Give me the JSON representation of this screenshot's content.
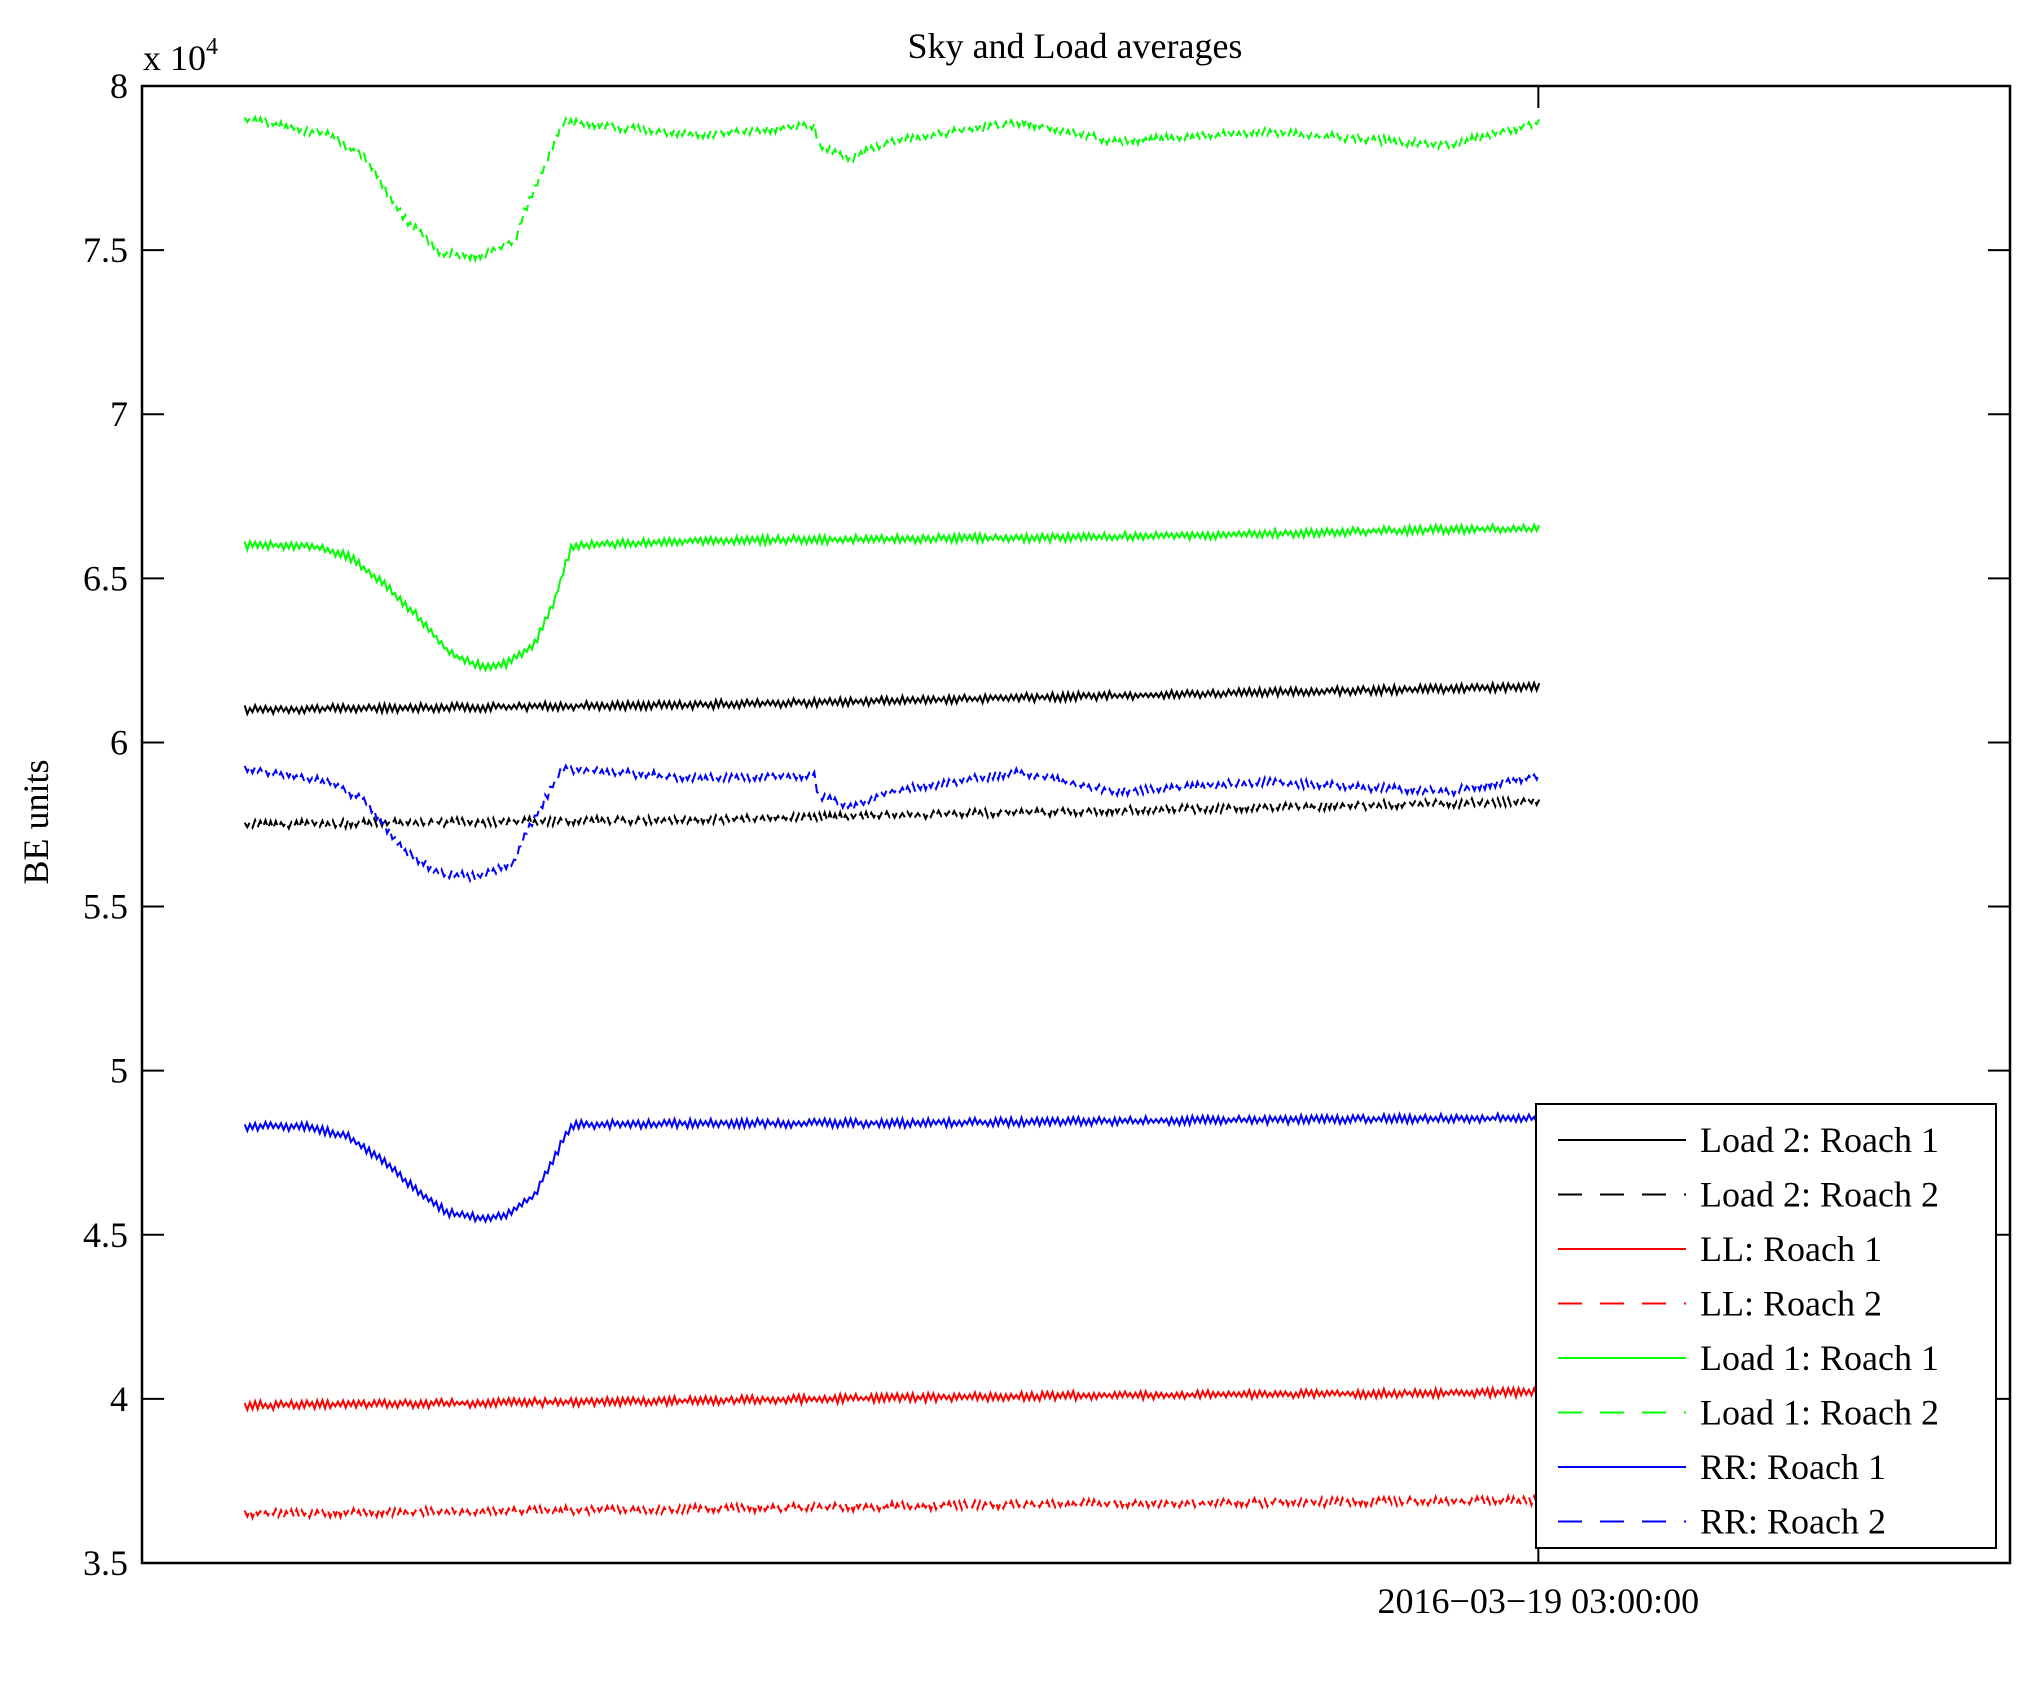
{
  "chart_data": {
    "type": "line",
    "title": "Sky and Load averages",
    "ylabel": "BE units",
    "xlabel": "",
    "y_multiplier": "x 10",
    "y_multiplier_exp": "4",
    "ylim": [
      3.5,
      8
    ],
    "yticks": [
      3.5,
      4,
      4.5,
      5,
      5.5,
      6,
      6.5,
      7,
      7.5,
      8
    ],
    "xlim": [
      0,
      1
    ],
    "xticks": [
      {
        "x": 0.7475,
        "label": "2016−03−19 03:00:00"
      }
    ],
    "grid": false,
    "legend_position": "bottom-right",
    "series": [
      {
        "name": "Load 2: Roach 1",
        "color": "#000000",
        "dash": "solid",
        "x": [
          0.055,
          0.3,
          0.5,
          0.748
        ],
        "y": [
          6.1,
          6.115,
          6.14,
          6.17
        ]
      },
      {
        "name": "Load 2: Roach 2",
        "color": "#000000",
        "dash": "dashed",
        "x": [
          0.055,
          0.3,
          0.5,
          0.748
        ],
        "y": [
          5.75,
          5.765,
          5.79,
          5.82
        ]
      },
      {
        "name": "LL: Roach 1",
        "color": "#ff0000",
        "dash": "solid",
        "x": [
          0.055,
          0.3,
          0.5,
          0.748
        ],
        "y": [
          3.98,
          3.995,
          4.01,
          4.02
        ]
      },
      {
        "name": "LL: Roach 2",
        "color": "#ff0000",
        "dash": "dashed",
        "x": [
          0.055,
          0.3,
          0.5,
          0.748
        ],
        "y": [
          3.65,
          3.665,
          3.68,
          3.69
        ]
      },
      {
        "name": "Load 1: Roach 1",
        "color": "#00ff00",
        "dash": "solid",
        "x": [
          0.055,
          0.09,
          0.11,
          0.13,
          0.15,
          0.165,
          0.175,
          0.185,
          0.195,
          0.21,
          0.22,
          0.23,
          0.3,
          0.4,
          0.5,
          0.6,
          0.7,
          0.748
        ],
        "y": [
          6.6,
          6.6,
          6.57,
          6.48,
          6.37,
          6.27,
          6.245,
          6.23,
          6.24,
          6.3,
          6.42,
          6.6,
          6.615,
          6.62,
          6.625,
          6.635,
          6.65,
          6.65
        ]
      },
      {
        "name": "Load 1: Roach 2",
        "color": "#00ff00",
        "dash": "dashed",
        "x": [
          0.055,
          0.1,
          0.12,
          0.14,
          0.16,
          0.18,
          0.2,
          0.205,
          0.215,
          0.225,
          0.3,
          0.36,
          0.362,
          0.38,
          0.4,
          0.47,
          0.52,
          0.6,
          0.7,
          0.748
        ],
        "y": [
          7.9,
          7.85,
          7.78,
          7.6,
          7.49,
          7.48,
          7.53,
          7.62,
          7.75,
          7.89,
          7.85,
          7.88,
          7.82,
          7.78,
          7.83,
          7.89,
          7.83,
          7.86,
          7.82,
          7.89
        ]
      },
      {
        "name": "RR: Roach 1",
        "color": "#0000ff",
        "dash": "solid",
        "x": [
          0.055,
          0.09,
          0.11,
          0.13,
          0.15,
          0.165,
          0.175,
          0.185,
          0.195,
          0.21,
          0.22,
          0.23,
          0.3,
          0.4,
          0.5,
          0.6,
          0.7,
          0.748
        ],
        "y": [
          4.83,
          4.83,
          4.8,
          4.72,
          4.62,
          4.565,
          4.555,
          4.55,
          4.56,
          4.62,
          4.73,
          4.835,
          4.84,
          4.84,
          4.845,
          4.85,
          4.855,
          4.855
        ]
      },
      {
        "name": "RR: Roach 2",
        "color": "#0000ff",
        "dash": "dashed",
        "x": [
          0.055,
          0.1,
          0.12,
          0.14,
          0.16,
          0.18,
          0.2,
          0.205,
          0.215,
          0.225,
          0.3,
          0.36,
          0.362,
          0.38,
          0.4,
          0.47,
          0.52,
          0.6,
          0.7,
          0.748
        ],
        "y": [
          5.92,
          5.88,
          5.82,
          5.67,
          5.6,
          5.59,
          5.64,
          5.72,
          5.82,
          5.92,
          5.89,
          5.9,
          5.84,
          5.8,
          5.85,
          5.91,
          5.85,
          5.88,
          5.85,
          5.9
        ]
      }
    ]
  }
}
